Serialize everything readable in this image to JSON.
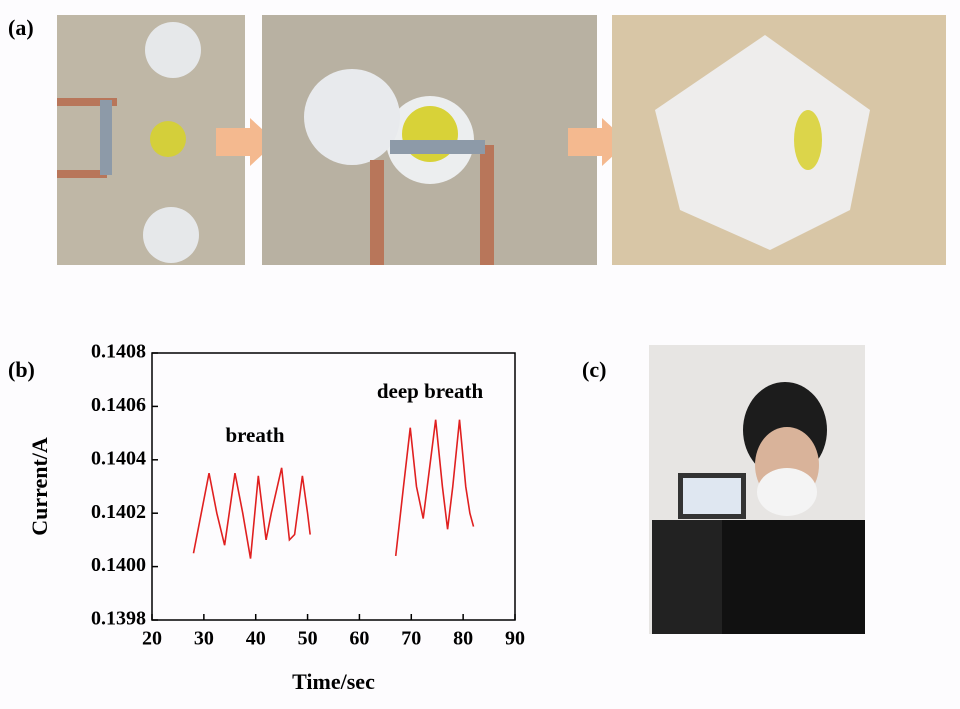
{
  "panels": {
    "a": "(a)",
    "b": "(b)",
    "c": "(c)"
  },
  "chart_data": {
    "type": "line",
    "x_label": "Time/sec",
    "y_label": "Current/A",
    "annotations": [
      "breath",
      "deep breath"
    ],
    "series": [
      {
        "color": "#e02020",
        "x": [
          28,
          29.5,
          31,
          32.5,
          34,
          36,
          37.5,
          39,
          40.5,
          42,
          43,
          45,
          46.5,
          47.5,
          49,
          50,
          50.5
        ],
        "values": [
          0.14005,
          0.1402,
          0.14035,
          0.1402,
          0.14008,
          0.14035,
          0.1402,
          0.14003,
          0.14034,
          0.1401,
          0.1402,
          0.14037,
          0.1401,
          0.14012,
          0.14034,
          0.1402,
          0.14012
        ]
      },
      {
        "color": "#e02020",
        "x": [
          67,
          68.5,
          69.8,
          71,
          72.3,
          74.7,
          76,
          77,
          78,
          79.3,
          80.5,
          81.3,
          82
        ],
        "values": [
          0.14004,
          0.1403,
          0.14052,
          0.1403,
          0.14018,
          0.14055,
          0.1403,
          0.14014,
          0.1403,
          0.14055,
          0.1403,
          0.1402,
          0.14015
        ]
      }
    ],
    "xlim": [
      20,
      90
    ],
    "xticks": [
      20,
      30,
      40,
      50,
      60,
      70,
      80,
      90
    ],
    "ylim": [
      0.1398,
      0.1408
    ],
    "yticks": [
      0.1398,
      {
        "value": 0.14,
        "label": "0.1400"
      },
      0.1402,
      0.1404,
      0.1406,
      0.1408
    ]
  }
}
